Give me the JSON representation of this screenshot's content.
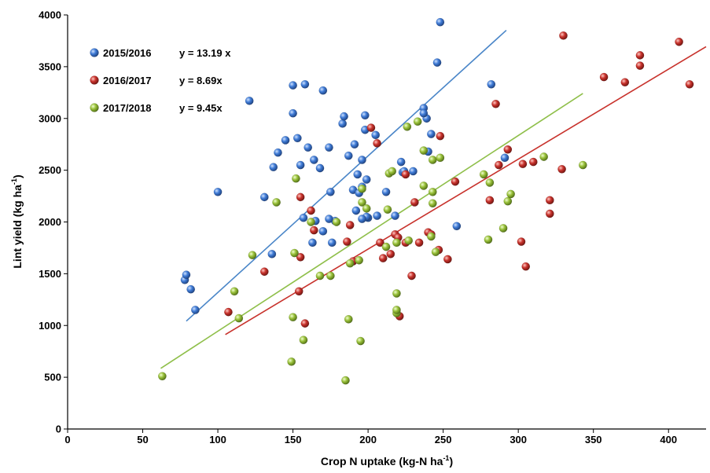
{
  "chart_data": {
    "type": "scatter",
    "title": "",
    "xlabel": {
      "main": "Crop N uptake (kg-N ha",
      "sup": "-1",
      "tail": ")"
    },
    "ylabel": {
      "main": "Lint yield (kg ha",
      "sup": "-1",
      "tail": ")"
    },
    "xlim": [
      0,
      425
    ],
    "ylim": [
      0,
      4000
    ],
    "x_ticks": [
      0,
      50,
      100,
      150,
      200,
      250,
      300,
      350,
      400
    ],
    "y_ticks": [
      0,
      500,
      1000,
      1500,
      2000,
      2500,
      3000,
      3500,
      4000
    ],
    "grid": false,
    "legend_position": "top-left",
    "series": [
      {
        "name": "2015/2016",
        "equation": "y = 13.19 x",
        "slope": 13.19,
        "fit_x": [
          79,
          292
        ],
        "color": "#3f7bd6",
        "line_color": "#4a86c8",
        "points": [
          [
            78,
            1440
          ],
          [
            79,
            1490
          ],
          [
            82,
            1350
          ],
          [
            85,
            1150
          ],
          [
            100,
            2290
          ],
          [
            121,
            3170
          ],
          [
            131,
            2240
          ],
          [
            136,
            1690
          ],
          [
            137,
            2530
          ],
          [
            140,
            2670
          ],
          [
            145,
            2790
          ],
          [
            150,
            3320
          ],
          [
            150,
            3050
          ],
          [
            153,
            2810
          ],
          [
            155,
            2550
          ],
          [
            157,
            2040
          ],
          [
            158,
            3330
          ],
          [
            160,
            2720
          ],
          [
            163,
            1800
          ],
          [
            164,
            2600
          ],
          [
            165,
            2010
          ],
          [
            168,
            2520
          ],
          [
            170,
            3270
          ],
          [
            170,
            1910
          ],
          [
            174,
            2720
          ],
          [
            175,
            2290
          ],
          [
            176,
            1800
          ],
          [
            178,
            2010
          ],
          [
            183,
            2950
          ],
          [
            184,
            3020
          ],
          [
            187,
            2640
          ],
          [
            190,
            2310
          ],
          [
            191,
            2750
          ],
          [
            192,
            2110
          ],
          [
            193,
            2460
          ],
          [
            194,
            2280
          ],
          [
            196,
            2340
          ],
          [
            196,
            2600
          ],
          [
            198,
            3030
          ],
          [
            198,
            2890
          ],
          [
            199,
            2410
          ],
          [
            200,
            2040
          ],
          [
            205,
            2840
          ],
          [
            206,
            2060
          ],
          [
            212,
            2290
          ],
          [
            218,
            2060
          ],
          [
            222,
            2580
          ],
          [
            223,
            2480
          ],
          [
            224,
            2490
          ],
          [
            230,
            2490
          ],
          [
            237,
            3100
          ],
          [
            239,
            3000
          ],
          [
            240,
            2680
          ],
          [
            242,
            2850
          ],
          [
            246,
            3540
          ],
          [
            248,
            3930
          ],
          [
            259,
            1960
          ],
          [
            282,
            3330
          ],
          [
            291,
            2620
          ],
          [
            237,
            3050
          ],
          [
            199,
            2050
          ],
          [
            174,
            2030
          ],
          [
            196,
            2030
          ]
        ]
      },
      {
        "name": "2016/2017",
        "equation": "y = 8.69x",
        "slope": 8.69,
        "fit_x": [
          105,
          425
        ],
        "color": "#c8322c",
        "line_color": "#c8322c",
        "points": [
          [
            107,
            1130
          ],
          [
            131,
            1520
          ],
          [
            154,
            1330
          ],
          [
            155,
            2240
          ],
          [
            155,
            1660
          ],
          [
            158,
            1020
          ],
          [
            162,
            2110
          ],
          [
            164,
            1920
          ],
          [
            186,
            1810
          ],
          [
            188,
            1970
          ],
          [
            190,
            1620
          ],
          [
            202,
            2910
          ],
          [
            206,
            2760
          ],
          [
            208,
            1800
          ],
          [
            210,
            1650
          ],
          [
            215,
            1690
          ],
          [
            218,
            1880
          ],
          [
            220,
            1850
          ],
          [
            221,
            1090
          ],
          [
            225,
            2460
          ],
          [
            225,
            1800
          ],
          [
            229,
            1480
          ],
          [
            231,
            2190
          ],
          [
            234,
            1800
          ],
          [
            240,
            1900
          ],
          [
            242,
            1880
          ],
          [
            247,
            1730
          ],
          [
            248,
            2830
          ],
          [
            253,
            1640
          ],
          [
            258,
            2390
          ],
          [
            281,
            2210
          ],
          [
            285,
            3140
          ],
          [
            287,
            2550
          ],
          [
            293,
            2700
          ],
          [
            302,
            1810
          ],
          [
            303,
            2560
          ],
          [
            305,
            1570
          ],
          [
            310,
            2580
          ],
          [
            321,
            2080
          ],
          [
            321,
            2210
          ],
          [
            329,
            2510
          ],
          [
            330,
            3800
          ],
          [
            357,
            3400
          ],
          [
            371,
            3350
          ],
          [
            381,
            3610
          ],
          [
            381,
            3510
          ],
          [
            407,
            3740
          ],
          [
            414,
            3330
          ]
        ]
      },
      {
        "name": "2017/2018",
        "equation": "y = 9.45x",
        "slope": 9.45,
        "fit_x": [
          62,
          343
        ],
        "color": "#99c13a",
        "line_color": "#8fbf4a",
        "points": [
          [
            63,
            510
          ],
          [
            111,
            1330
          ],
          [
            114,
            1070
          ],
          [
            123,
            1680
          ],
          [
            139,
            2190
          ],
          [
            149,
            650
          ],
          [
            150,
            1080
          ],
          [
            151,
            1700
          ],
          [
            152,
            2420
          ],
          [
            157,
            860
          ],
          [
            162,
            2000
          ],
          [
            168,
            1480
          ],
          [
            175,
            1480
          ],
          [
            179,
            2000
          ],
          [
            185,
            470
          ],
          [
            187,
            1060
          ],
          [
            188,
            1600
          ],
          [
            194,
            1630
          ],
          [
            195,
            850
          ],
          [
            196,
            2190
          ],
          [
            196,
            2320
          ],
          [
            199,
            2130
          ],
          [
            213,
            2120
          ],
          [
            214,
            2470
          ],
          [
            216,
            2490
          ],
          [
            219,
            1310
          ],
          [
            219,
            1120
          ],
          [
            219,
            1800
          ],
          [
            226,
            2920
          ],
          [
            227,
            1820
          ],
          [
            233,
            2970
          ],
          [
            237,
            2350
          ],
          [
            237,
            2690
          ],
          [
            242,
            1860
          ],
          [
            243,
            2600
          ],
          [
            243,
            2290
          ],
          [
            243,
            2180
          ],
          [
            245,
            1710
          ],
          [
            248,
            2620
          ],
          [
            277,
            2460
          ],
          [
            280,
            1830
          ],
          [
            281,
            2380
          ],
          [
            290,
            1940
          ],
          [
            293,
            2200
          ],
          [
            295,
            2270
          ],
          [
            317,
            2630
          ],
          [
            343,
            2550
          ],
          [
            219,
            1150
          ],
          [
            212,
            1760
          ]
        ]
      }
    ]
  }
}
